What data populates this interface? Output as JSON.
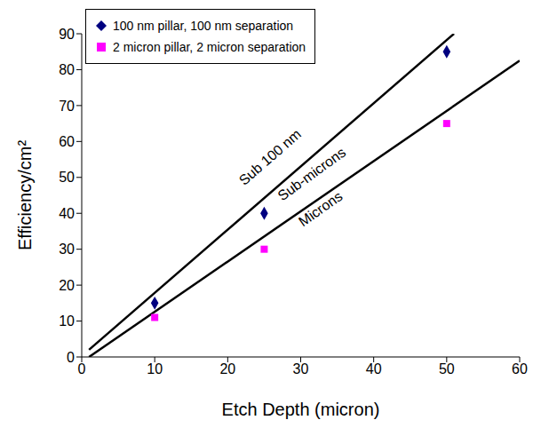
{
  "chart_data": {
    "type": "scatter",
    "x_label": "Etch Depth (micron)",
    "y_label": "Efficiency/cm²",
    "x": [
      10,
      25,
      50
    ],
    "series": [
      {
        "name": "100 nm pillar, 100 nm separation",
        "color": "#000080",
        "marker": "diamond",
        "values": [
          15,
          40,
          85
        ]
      },
      {
        "name": "2 micron pillar, 2 micron separation",
        "color": "#ff00ff",
        "marker": "square",
        "values": [
          11,
          30,
          65
        ]
      }
    ],
    "lines": [
      {
        "x": [
          1,
          51
        ],
        "y": [
          2,
          90
        ],
        "color": "#000000"
      },
      {
        "x": [
          1,
          60
        ],
        "y": [
          0,
          82.5
        ],
        "color": "#000000"
      }
    ],
    "annotations": [
      {
        "text": "Sub 100 nm",
        "x": 25.9,
        "y": 55.4
      },
      {
        "text": "Sub-microns",
        "x": 31.6,
        "y": 50.7
      },
      {
        "text": "Microns",
        "x": 32.8,
        "y": 41
      }
    ],
    "xlim": [
      0,
      60
    ],
    "xticks": [
      0,
      10,
      20,
      30,
      40,
      50,
      60
    ],
    "ylim": [
      0,
      90
    ],
    "yticks": [
      0,
      10,
      20,
      30,
      40,
      50,
      60,
      70,
      80,
      90
    ],
    "grid": false,
    "legend": "upper left"
  }
}
